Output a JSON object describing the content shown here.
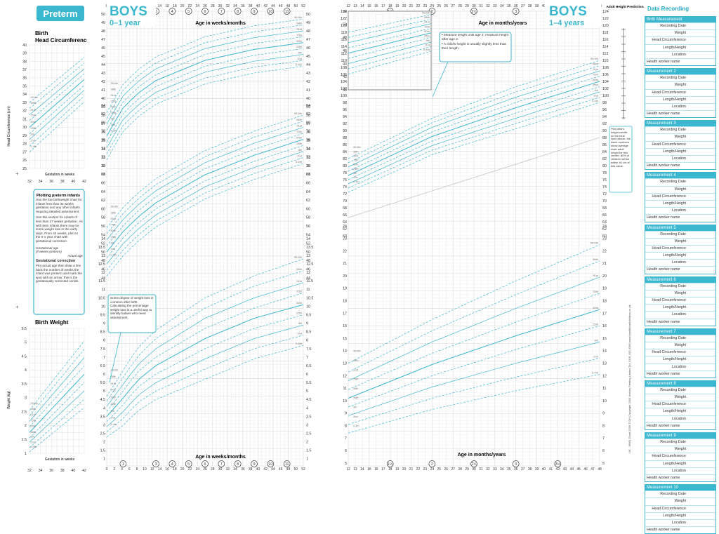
{
  "preterm": {
    "title": "Preterm",
    "hc_heading": "Birth\nHead Circumference",
    "hc_heading_line1": "Birth",
    "hc_heading_line2": "Head Circumference",
    "hc_ylabel": "Head Circumference (cm)",
    "hc_xlabel": "Gestation in weeks",
    "weight_heading": "Birth Weight",
    "weight_ylabel": "Weight (kg)",
    "weight_xlabel": "Gestation in weeks",
    "info_title1": "Plotting preterm infants",
    "info_text1": "Use the low birthweight chart for infants less than 32 weeks gestation and any other infants requiring detailed assessment.",
    "info_text2": "Use this section for infants of less than 37 weeks gestation. As with term infants there may be some weight loss in the early days. From 42 weeks, plot on the 0-1 year chart with gestational correction.",
    "info_label_gest": "Gestational age",
    "info_label_gest2": "(if weeks preterm)",
    "info_label_actual": "Actual age",
    "info_title2": "Gestational correction",
    "info_text3": "Plot actual age then draw a line back the number of weeks the infant was preterm and mark the spot with an arrow; this is the gestationally corrected centile."
  },
  "boys01": {
    "title1": "BOYS",
    "title2": "0–1 year",
    "xlabel_top": "Age in weeks/months",
    "xlabel_bottom": "Age in weeks/months",
    "note": "Some degree of weight loss is common after birth. Calculating the percentage weight loss is a useful way to identify babies who need assessment."
  },
  "boys14": {
    "title1": "BOYS",
    "title2": "1–4 years",
    "xlabel_top": "Age in months/years",
    "xlabel_bottom": "Age in months/years",
    "note_bullet1": "Measure length until age 2; measure height after age 2.",
    "note_bullet2": "A child's height is usually slightly less than their length.",
    "adult_height_title": "Adult Height Prediction",
    "adult_note": "Plot child's height centile on the blue lines above; the black numbers show average male adult height for this centile. 80% of children will be within ±6 cm of this value."
  },
  "footer_side": "UK - WHO Chart 2009   © DH Copyright 2009   Harlow Printing Limited Tel: 0191 455 4286   www.healthforallchildren.co.uk",
  "recording": {
    "title": "Data Recording",
    "blocks": [
      {
        "head": "Birth Measurement"
      },
      {
        "head": "Measurement 2"
      },
      {
        "head": "Measurement 3"
      },
      {
        "head": "Measurement 4"
      },
      {
        "head": "Measurement 5"
      },
      {
        "head": "Measurement 6"
      },
      {
        "head": "Measurement 7"
      },
      {
        "head": "Measurement 8"
      },
      {
        "head": "Measurement 9"
      },
      {
        "head": "Measurement 10"
      }
    ],
    "fields": [
      "Recording Date",
      "Weight",
      "Head Circumference",
      "Length/Height",
      "Location",
      "Health worker name"
    ]
  },
  "chart_data": [
    {
      "type": "line",
      "title": "Birth Head Circumference",
      "xlabel": "Gestation in weeks",
      "ylabel": "Head Circumference (cm)",
      "xlim": [
        32,
        42
      ],
      "ylim": [
        25,
        40
      ],
      "x": [
        32,
        42
      ],
      "series": [
        {
          "name": "99.6th",
          "values": [
            33.0,
            38.5
          ]
        },
        {
          "name": "98th",
          "values": [
            32.3,
            37.8
          ]
        },
        {
          "name": "91st",
          "values": [
            31.5,
            37.1
          ]
        },
        {
          "name": "75th",
          "values": [
            30.8,
            36.5
          ]
        },
        {
          "name": "50th",
          "values": [
            30.0,
            35.8
          ]
        },
        {
          "name": "25th",
          "values": [
            29.2,
            35.1
          ]
        },
        {
          "name": "9th",
          "values": [
            28.5,
            34.5
          ]
        },
        {
          "name": "2nd",
          "values": [
            27.7,
            33.8
          ]
        },
        {
          "name": "0.4th",
          "values": [
            27.0,
            33.1
          ]
        }
      ]
    },
    {
      "type": "line",
      "title": "Birth Weight",
      "xlabel": "Gestation in weeks",
      "ylabel": "Weight (kg)",
      "xlim": [
        32,
        42
      ],
      "ylim": [
        1,
        5.5
      ],
      "x": [
        32,
        42
      ],
      "series": [
        {
          "name": "99.6th",
          "values": [
            2.55,
            5.05
          ]
        },
        {
          "name": "98th",
          "values": [
            2.35,
            4.75
          ]
        },
        {
          "name": "91st",
          "values": [
            2.15,
            4.45
          ]
        },
        {
          "name": "75th",
          "values": [
            1.95,
            4.15
          ]
        },
        {
          "name": "50th",
          "values": [
            1.75,
            3.85
          ]
        },
        {
          "name": "25th",
          "values": [
            1.55,
            3.55
          ]
        },
        {
          "name": "9th",
          "values": [
            1.4,
            3.25
          ]
        },
        {
          "name": "2nd",
          "values": [
            1.2,
            2.95
          ]
        },
        {
          "name": "0.4th",
          "values": [
            1.05,
            2.65
          ]
        }
      ]
    },
    {
      "type": "line",
      "title": "Head Circumference 0–1 year",
      "xlabel": "Age in weeks/months",
      "ylabel": "cm",
      "xlim": [
        0,
        52
      ],
      "ylim": [
        31,
        50
      ],
      "x": [
        0,
        4,
        8,
        13,
        26,
        39,
        52
      ],
      "series": [
        {
          "name": "99.6th",
          "values": [
            38.3,
            41.5,
            43.3,
            44.9,
            47.3,
            48.6,
            49.4
          ]
        },
        {
          "name": "98th",
          "values": [
            37.6,
            40.8,
            42.6,
            44.2,
            46.6,
            47.9,
            48.7
          ]
        },
        {
          "name": "91st",
          "values": [
            36.9,
            40.1,
            41.9,
            43.5,
            45.9,
            47.2,
            48.0
          ]
        },
        {
          "name": "75th",
          "values": [
            36.2,
            39.4,
            41.2,
            42.8,
            45.2,
            46.5,
            47.3
          ]
        },
        {
          "name": "50th",
          "values": [
            35.5,
            38.7,
            40.5,
            42.1,
            44.5,
            45.8,
            46.6
          ]
        },
        {
          "name": "25th",
          "values": [
            34.8,
            38.0,
            39.8,
            41.4,
            43.8,
            45.1,
            45.9
          ]
        },
        {
          "name": "9th",
          "values": [
            34.1,
            37.3,
            39.1,
            40.7,
            43.1,
            44.4,
            45.2
          ]
        },
        {
          "name": "2nd",
          "values": [
            33.4,
            36.6,
            38.4,
            40.0,
            42.4,
            43.7,
            44.5
          ]
        },
        {
          "name": "0.4th",
          "values": [
            32.7,
            35.9,
            37.7,
            39.3,
            41.7,
            43.0,
            43.8
          ]
        }
      ]
    },
    {
      "type": "line",
      "title": "Length 0–1 year",
      "xlabel": "Age in weeks/months",
      "ylabel": "cm",
      "xlim": [
        0,
        52
      ],
      "ylim": [
        44,
        84
      ],
      "x": [
        0,
        4,
        8,
        13,
        26,
        39,
        52
      ],
      "series": [
        {
          "name": "99.6th",
          "values": [
            55.6,
            60.0,
            63.5,
            67.0,
            73.5,
            78.0,
            81.7
          ]
        },
        {
          "name": "98th",
          "values": [
            54.2,
            58.6,
            62.1,
            65.6,
            72.1,
            76.6,
            80.3
          ]
        },
        {
          "name": "91st",
          "values": [
            52.8,
            57.2,
            60.7,
            64.2,
            70.7,
            75.2,
            78.9
          ]
        },
        {
          "name": "75th",
          "values": [
            51.4,
            55.8,
            59.3,
            62.8,
            69.3,
            73.8,
            77.5
          ]
        },
        {
          "name": "50th",
          "values": [
            50.0,
            54.4,
            57.9,
            61.4,
            67.9,
            72.4,
            76.1
          ]
        },
        {
          "name": "25th",
          "values": [
            48.6,
            53.0,
            56.5,
            60.0,
            66.5,
            71.0,
            74.7
          ]
        },
        {
          "name": "9th",
          "values": [
            47.2,
            51.6,
            55.1,
            58.6,
            65.1,
            69.6,
            73.3
          ]
        },
        {
          "name": "2nd",
          "values": [
            45.8,
            50.2,
            53.7,
            57.2,
            63.7,
            68.2,
            71.9
          ]
        },
        {
          "name": "0.4th",
          "values": [
            44.4,
            48.8,
            52.3,
            55.8,
            62.3,
            66.8,
            70.5
          ]
        }
      ]
    },
    {
      "type": "line",
      "title": "Weight 0–1 year",
      "xlabel": "Age in weeks/months",
      "ylabel": "kg",
      "xlim": [
        0,
        52
      ],
      "ylim": [
        0.5,
        14
      ],
      "x": [
        0,
        4,
        8,
        13,
        26,
        39,
        52
      ],
      "series": [
        {
          "name": "99.6th",
          "values": [
            4.7,
            6.1,
            7.5,
            8.6,
            10.5,
            11.8,
            12.8
          ]
        },
        {
          "name": "98th",
          "values": [
            4.4,
            5.7,
            7.0,
            8.1,
            9.9,
            11.2,
            12.1
          ]
        },
        {
          "name": "91st",
          "values": [
            4.1,
            5.3,
            6.5,
            7.5,
            9.3,
            10.5,
            11.4
          ]
        },
        {
          "name": "75th",
          "values": [
            3.8,
            4.9,
            6.1,
            7.0,
            8.7,
            9.9,
            10.8
          ]
        },
        {
          "name": "50th",
          "values": [
            3.5,
            4.5,
            5.6,
            6.5,
            8.1,
            9.3,
            10.1
          ]
        },
        {
          "name": "25th",
          "values": [
            3.2,
            4.1,
            5.2,
            6.0,
            7.5,
            8.7,
            9.5
          ]
        },
        {
          "name": "9th",
          "values": [
            2.9,
            3.7,
            4.7,
            5.5,
            6.9,
            8.1,
            8.9
          ]
        },
        {
          "name": "2nd",
          "values": [
            2.6,
            3.3,
            4.3,
            5.0,
            6.3,
            7.5,
            8.3
          ]
        },
        {
          "name": "0.4th",
          "values": [
            2.3,
            2.9,
            3.8,
            4.5,
            5.7,
            6.9,
            7.7
          ]
        }
      ]
    },
    {
      "type": "line",
      "title": "Length/Height 1–4 years",
      "xlabel": "Age in months/years",
      "ylabel": "cm",
      "xlim": [
        12,
        48
      ],
      "ylim": [
        60,
        124
      ],
      "x": [
        12,
        24,
        36,
        48
      ],
      "series": [
        {
          "name": "99.6th",
          "values": [
            82.0,
            93.5,
            102.5,
            110.0
          ]
        },
        {
          "name": "98th",
          "values": [
            80.8,
            92.2,
            101.0,
            108.5
          ]
        },
        {
          "name": "91st",
          "values": [
            79.6,
            90.9,
            99.5,
            107.0
          ]
        },
        {
          "name": "75th",
          "values": [
            78.4,
            89.6,
            98.0,
            105.5
          ]
        },
        {
          "name": "50th",
          "values": [
            77.2,
            88.3,
            96.5,
            104.0
          ]
        },
        {
          "name": "25th",
          "values": [
            76.0,
            87.0,
            95.0,
            102.5
          ]
        },
        {
          "name": "9th",
          "values": [
            74.8,
            85.7,
            93.5,
            101.0
          ]
        },
        {
          "name": "2nd",
          "values": [
            73.6,
            84.4,
            92.0,
            99.5
          ]
        },
        {
          "name": "0.4th",
          "values": [
            72.4,
            83.1,
            90.5,
            98.0
          ]
        }
      ]
    },
    {
      "type": "line",
      "title": "Weight 1–4 years",
      "xlabel": "Age in months/years",
      "ylabel": "kg",
      "xlim": [
        12,
        48
      ],
      "ylim": [
        5,
        24
      ],
      "x": [
        12,
        24,
        36,
        48
      ],
      "series": [
        {
          "name": "99.6th",
          "values": [
            13.0,
            16.5,
            19.6,
            22.5
          ]
        },
        {
          "name": "98th",
          "values": [
            12.3,
            15.6,
            18.5,
            21.2
          ]
        },
        {
          "name": "91st",
          "values": [
            11.6,
            14.7,
            17.4,
            19.9
          ]
        },
        {
          "name": "75th",
          "values": [
            10.9,
            13.8,
            16.3,
            18.6
          ]
        },
        {
          "name": "50th",
          "values": [
            10.2,
            12.9,
            15.2,
            17.3
          ]
        },
        {
          "name": "25th",
          "values": [
            9.5,
            12.0,
            14.1,
            16.0
          ]
        },
        {
          "name": "9th",
          "values": [
            8.8,
            11.1,
            13.0,
            14.7
          ]
        },
        {
          "name": "2nd",
          "values": [
            8.1,
            10.2,
            11.9,
            13.4
          ]
        },
        {
          "name": "0.4th",
          "values": [
            7.4,
            9.3,
            10.8,
            12.1
          ]
        }
      ]
    }
  ]
}
